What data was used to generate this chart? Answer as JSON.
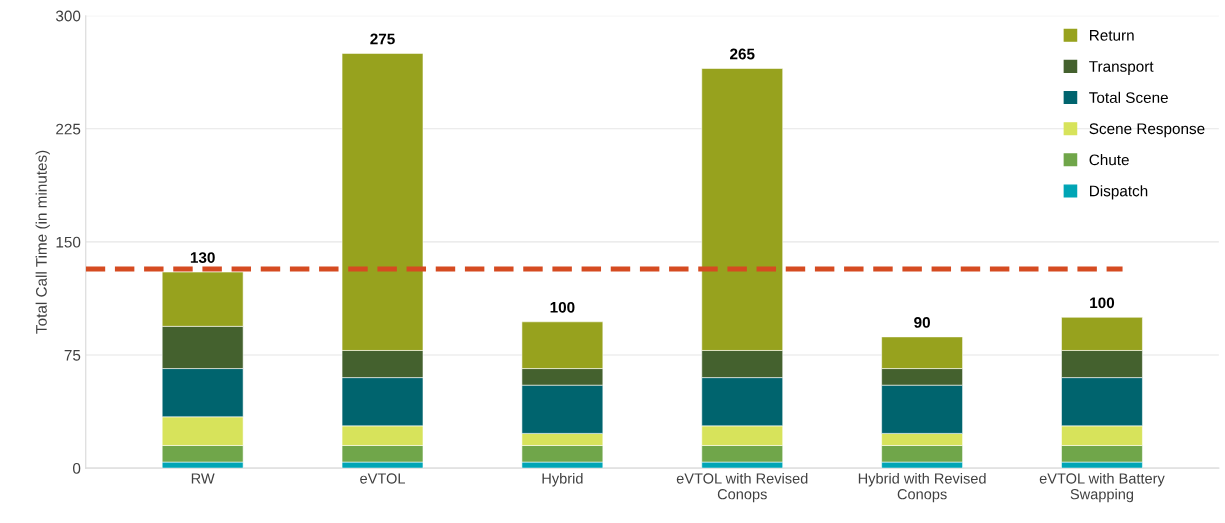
{
  "chart_data": {
    "type": "bar",
    "stacked": true,
    "ylabel": "Total Call Time (in minutes)",
    "categories": [
      "RW",
      "eVTOL",
      "Hybrid",
      "eVTOL with Revised\nConops",
      "Hybrid with Revised\nConops",
      "eVTOL with Battery\nSwapping"
    ],
    "series": [
      {
        "name": "Dispatch",
        "color": "#00a5b5",
        "values": [
          4,
          4,
          4,
          4,
          4,
          4
        ]
      },
      {
        "name": "Chute",
        "color": "#70a64a",
        "values": [
          11,
          11,
          11,
          11,
          11,
          11
        ]
      },
      {
        "name": "Scene Response",
        "color": "#d7e35b",
        "values": [
          19,
          13,
          8,
          13,
          8,
          13
        ]
      },
      {
        "name": "Total Scene",
        "color": "#00646e",
        "values": [
          32,
          32,
          32,
          32,
          32,
          32
        ]
      },
      {
        "name": "Transport",
        "color": "#44612e",
        "values": [
          28,
          18,
          11,
          18,
          11,
          18
        ]
      },
      {
        "name": "Return",
        "color": "#97a21e",
        "values": [
          36,
          197,
          31,
          187,
          21,
          22
        ]
      }
    ],
    "totals": [
      "130",
      "275",
      "100",
      "265",
      "90",
      "100"
    ],
    "ylim": [
      0,
      300
    ],
    "yticks": [
      0,
      75,
      150,
      225,
      300
    ],
    "grid": "y",
    "legend": "top right",
    "ref_lines": [
      {
        "axis": "y",
        "value": 132,
        "color": "#d54b21",
        "line_style": "dashed"
      }
    ]
  }
}
